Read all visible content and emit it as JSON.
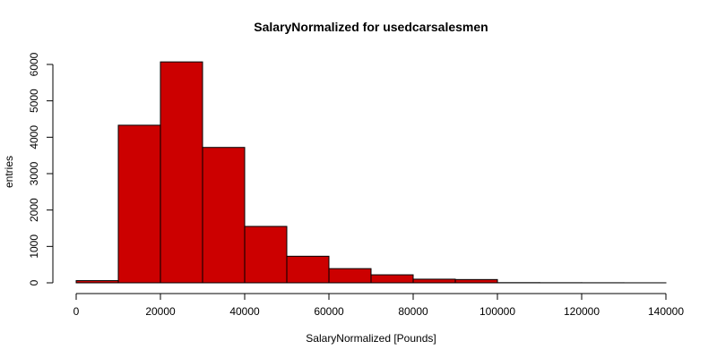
{
  "chart_data": {
    "type": "bar",
    "title": "SalaryNormalized for usedcarsalesmen",
    "xlabel": "SalaryNormalized [Pounds]",
    "ylabel": "entries",
    "bin_edges": [
      0,
      10000,
      20000,
      30000,
      40000,
      50000,
      60000,
      70000,
      80000,
      90000,
      100000,
      110000,
      120000,
      130000,
      140000
    ],
    "values": [
      60,
      4330,
      6070,
      3720,
      1550,
      730,
      390,
      220,
      100,
      90,
      5,
      3,
      2,
      1
    ],
    "xlim": [
      0,
      140000
    ],
    "ylim": [
      0,
      6000
    ],
    "xticks": [
      0,
      20000,
      40000,
      60000,
      80000,
      100000,
      120000,
      140000
    ],
    "xtick_labels": [
      "0",
      "20000",
      "40000",
      "60000",
      "80000",
      "100000",
      "120000",
      "140000"
    ],
    "yticks": [
      0,
      1000,
      2000,
      3000,
      4000,
      5000,
      6000
    ],
    "ytick_labels": [
      "0",
      "1000",
      "2000",
      "3000",
      "4000",
      "5000",
      "6000"
    ],
    "bar_color": "#cc0000",
    "grid": false,
    "legend": "none"
  }
}
